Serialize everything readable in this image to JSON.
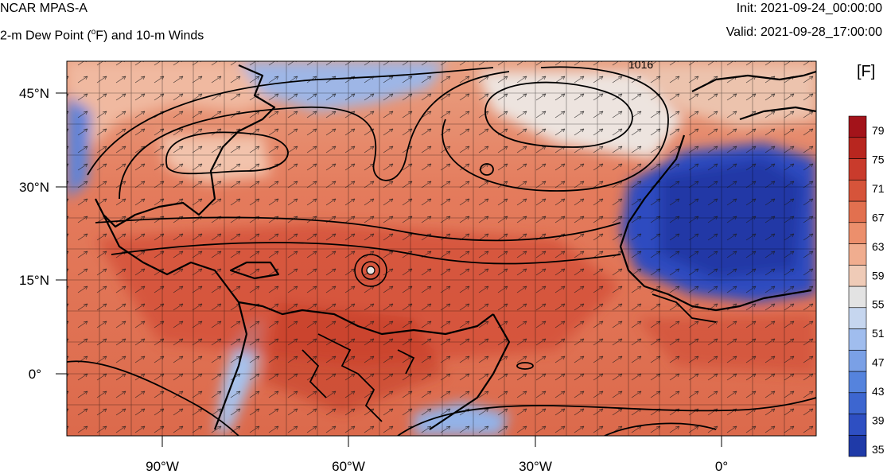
{
  "header": {
    "title": "NCAR MPAS-A",
    "subtitle_prefix": "2-m Dew Point (",
    "subtitle_degree": "o",
    "subtitle_suffix": "F) and 10-m Winds",
    "init": "Init: 2021-09-24_00:00:00",
    "valid": "Valid: 2021-09-28_17:00:00"
  },
  "map": {
    "lat_labels": [
      "45°N",
      "30°N",
      "15°N",
      "0°"
    ],
    "lon_labels": [
      "90°W",
      "60°W",
      "30°W",
      "0°"
    ],
    "contour_label": "1016"
  },
  "colorbar": {
    "unit": "[F]",
    "labels": [
      "79",
      "75",
      "71",
      "67",
      "63",
      "59",
      "55",
      "51",
      "47",
      "43",
      "39",
      "35"
    ],
    "colors": [
      "#1f3aa8",
      "#2e4fc2",
      "#3d66d0",
      "#5583dd",
      "#7aa0e6",
      "#a0bdee",
      "#c6d6ef",
      "#e3e3e3",
      "#efcbb7",
      "#f0ad8f",
      "#ec8f6c",
      "#e2704f",
      "#d6543a",
      "#c93b2c",
      "#b8261f",
      "#a3131a"
    ]
  }
}
